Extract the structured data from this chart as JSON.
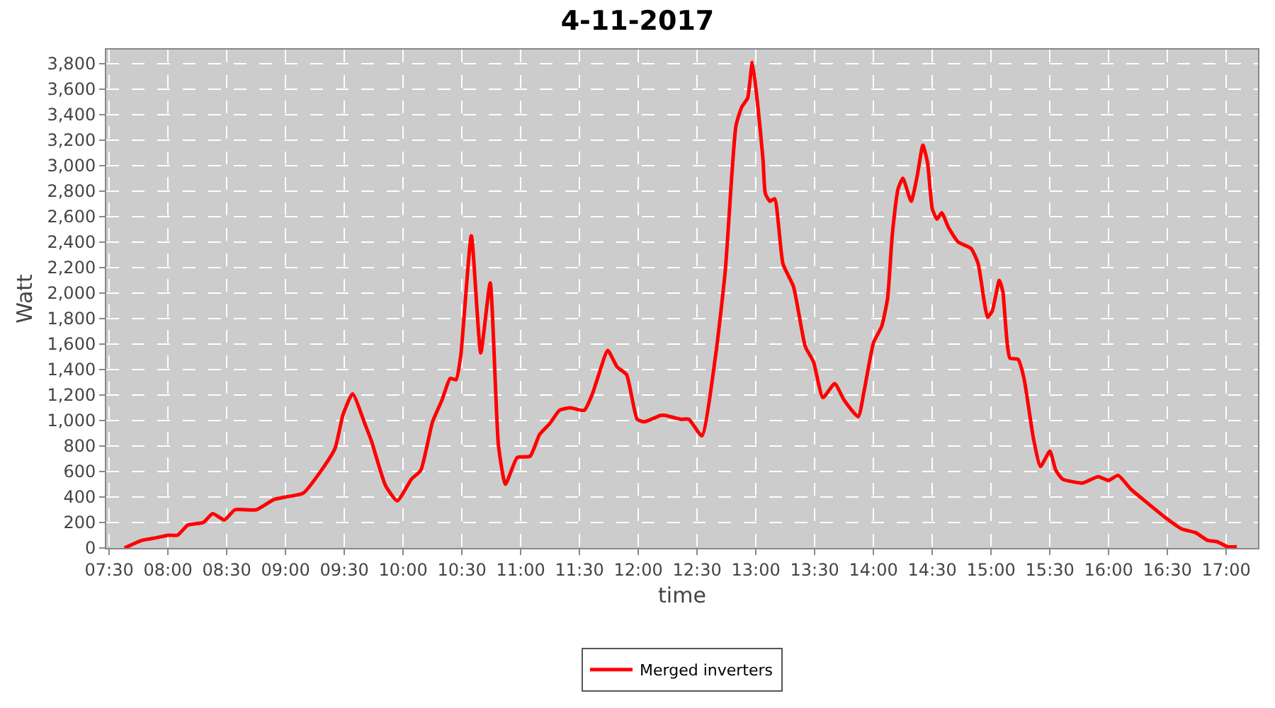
{
  "chart_data": {
    "type": "line",
    "title": "4-11-2017",
    "xlabel": "time",
    "ylabel": "Watt",
    "xlim": [
      7.475,
      17.27
    ],
    "xticks": [
      {
        "value": 7.5,
        "label": "07:30"
      },
      {
        "value": 8,
        "label": "08:00"
      },
      {
        "value": 8.5,
        "label": "08:30"
      },
      {
        "value": 9,
        "label": "09:00"
      },
      {
        "value": 9.5,
        "label": "09:30"
      },
      {
        "value": 10,
        "label": "10:00"
      },
      {
        "value": 10.5,
        "label": "10:30"
      },
      {
        "value": 11,
        "label": "11:00"
      },
      {
        "value": 11.5,
        "label": "11:30"
      },
      {
        "value": 12,
        "label": "12:00"
      },
      {
        "value": 12.5,
        "label": "12:30"
      },
      {
        "value": 13,
        "label": "13:00"
      },
      {
        "value": 13.5,
        "label": "13:30"
      },
      {
        "value": 14,
        "label": "14:00"
      },
      {
        "value": 14.5,
        "label": "14:30"
      },
      {
        "value": 15,
        "label": "15:00"
      },
      {
        "value": 15.5,
        "label": "15:30"
      },
      {
        "value": 16,
        "label": "16:00"
      },
      {
        "value": 16.5,
        "label": "16:30"
      },
      {
        "value": 17,
        "label": "17:00"
      }
    ],
    "ylim": [
      0,
      3910
    ],
    "yticks": [
      0,
      200,
      400,
      600,
      800,
      {
        "value": 1000,
        "label": "1,000"
      },
      {
        "value": 1200,
        "label": "1,200"
      },
      {
        "value": 1400,
        "label": "1,400"
      },
      {
        "value": 1600,
        "label": "1,600"
      },
      {
        "value": 1800,
        "label": "1,800"
      },
      {
        "value": 2000,
        "label": "2,000"
      },
      {
        "value": 2200,
        "label": "2,200"
      },
      {
        "value": 2400,
        "label": "2,400"
      },
      {
        "value": 2600,
        "label": "2,600"
      },
      {
        "value": 2800,
        "label": "2,800"
      },
      {
        "value": 3000,
        "label": "3,000"
      },
      {
        "value": 3200,
        "label": "3,200"
      },
      {
        "value": 3400,
        "label": "3,400"
      },
      {
        "value": 3600,
        "label": "3,600"
      },
      {
        "value": 3800,
        "label": "3,800"
      }
    ],
    "grid": true,
    "legend": "bottom",
    "marker": "none",
    "line_style": "solid",
    "x": [
      7.63,
      7.78,
      7.9,
      8.0,
      8.08,
      8.17,
      8.3,
      8.38,
      8.48,
      8.57,
      8.75,
      8.9,
      9.0,
      9.15,
      9.32,
      9.42,
      9.49,
      9.57,
      9.68,
      9.73,
      9.85,
      9.95,
      10.07,
      10.15,
      10.25,
      10.33,
      10.4,
      10.45,
      10.49,
      10.58,
      10.66,
      10.74,
      10.81,
      10.87,
      10.97,
      11.08,
      11.16,
      11.25,
      11.33,
      11.42,
      11.54,
      11.61,
      11.66,
      11.74,
      11.82,
      11.9,
      11.99,
      12.05,
      12.19,
      12.23,
      12.36,
      12.43,
      12.54,
      12.66,
      12.74,
      12.83,
      12.88,
      12.93,
      12.97,
      13.06,
      13.08,
      13.12,
      13.16,
      13.23,
      13.32,
      13.42,
      13.49,
      13.57,
      13.67,
      13.75,
      13.87,
      13.92,
      14.0,
      14.07,
      14.12,
      14.16,
      14.21,
      14.25,
      14.32,
      14.37,
      14.42,
      14.46,
      14.5,
      14.54,
      14.58,
      14.64,
      14.72,
      14.83,
      14.89,
      14.97,
      15.01,
      15.07,
      15.1,
      15.16,
      15.23,
      15.28,
      15.36,
      15.42,
      15.5,
      15.55,
      15.61,
      15.78,
      15.91,
      16.0,
      16.08,
      16.19,
      16.32,
      16.48,
      16.62,
      16.74,
      16.84,
      16.92,
      17.01,
      17.09
    ],
    "series": [
      {
        "name": "Merged inverters",
        "color": "#ff0000",
        "values": [
          0,
          60,
          80,
          100,
          100,
          180,
          200,
          270,
          220,
          300,
          300,
          380,
          400,
          430,
          630,
          780,
          1050,
          1210,
          960,
          840,
          490,
          370,
          540,
          610,
          990,
          1160,
          1330,
          1320,
          1510,
          2450,
          1530,
          2080,
          810,
          500,
          710,
          720,
          890,
          980,
          1080,
          1100,
          1080,
          1210,
          1350,
          1550,
          1420,
          1360,
          1010,
          990,
          1040,
          1040,
          1010,
          1010,
          880,
          1530,
          2180,
          3310,
          3460,
          3530,
          3810,
          3050,
          2780,
          2720,
          2740,
          2230,
          2050,
          1580,
          1460,
          1180,
          1290,
          1160,
          1030,
          1230,
          1610,
          1740,
          1960,
          2460,
          2820,
          2900,
          2720,
          2910,
          3160,
          3020,
          2660,
          2580,
          2630,
          2510,
          2400,
          2350,
          2230,
          1810,
          1860,
          2100,
          2010,
          1490,
          1480,
          1330,
          860,
          640,
          760,
          610,
          540,
          510,
          560,
          530,
          570,
          460,
          360,
          240,
          150,
          120,
          60,
          50,
          10,
          10
        ]
      }
    ]
  }
}
